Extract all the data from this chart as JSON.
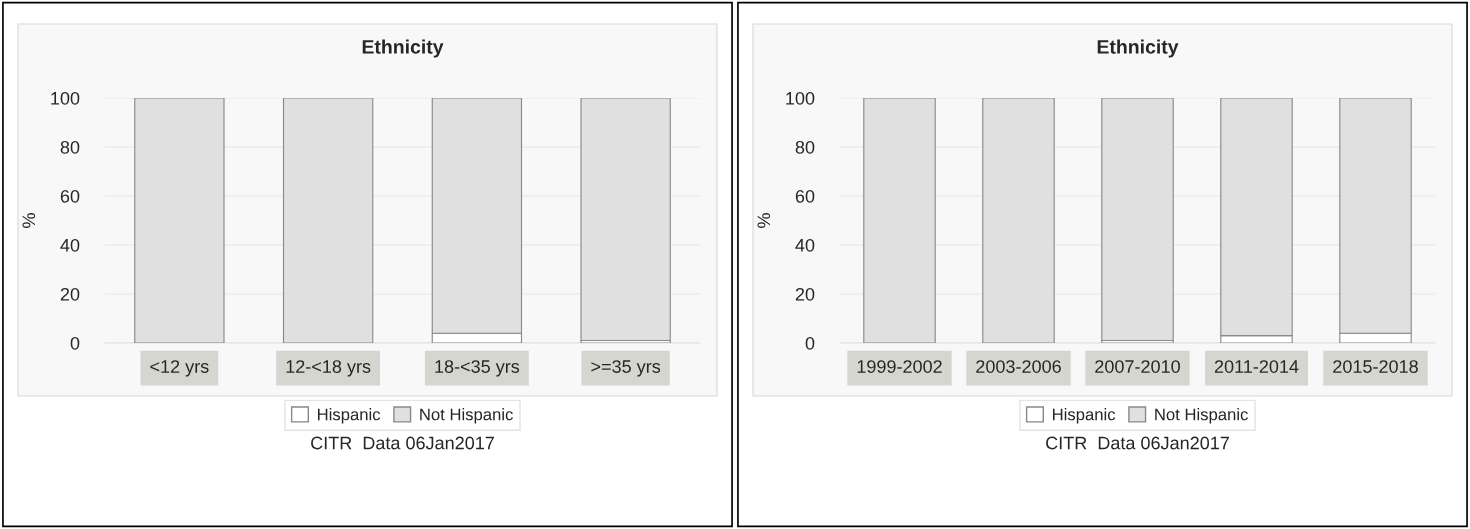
{
  "chart_data": [
    {
      "type": "bar",
      "title": "Ethnicity",
      "ylabel": "%",
      "categories": [
        "<12 yrs",
        "12-<18 yrs",
        "18-<35 yrs",
        ">=35 yrs"
      ],
      "stacked": true,
      "series": [
        {
          "name": "Hispanic",
          "color": "#ffffff",
          "values": [
            0,
            0,
            4,
            1
          ]
        },
        {
          "name": "Not Hispanic",
          "color": "#e0e0e0",
          "values": [
            100,
            100,
            96,
            99
          ]
        }
      ],
      "ylim": [
        0,
        100
      ],
      "yticks": [
        0,
        20,
        40,
        60,
        80,
        100
      ],
      "grid": "y",
      "legend": "bottom",
      "annotations": [
        "CITR  Data 06Jan2017"
      ]
    },
    {
      "type": "bar",
      "title": "Ethnicity",
      "ylabel": "%",
      "categories": [
        "1999-2002",
        "2003-2006",
        "2007-2010",
        "2011-2014",
        "2015-2018"
      ],
      "stacked": true,
      "series": [
        {
          "name": "Hispanic",
          "color": "#ffffff",
          "values": [
            0,
            0,
            1,
            3,
            4
          ]
        },
        {
          "name": "Not Hispanic",
          "color": "#e0e0e0",
          "values": [
            100,
            100,
            99,
            97,
            96
          ]
        }
      ],
      "ylim": [
        0,
        100
      ],
      "yticks": [
        0,
        20,
        40,
        60,
        80,
        100
      ],
      "grid": "y",
      "legend": "bottom",
      "annotations": [
        "CITR  Data 06Jan2017"
      ]
    }
  ]
}
